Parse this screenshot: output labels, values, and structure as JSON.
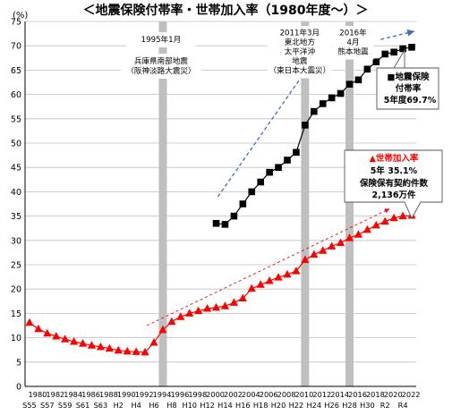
{
  "chart_data": {
    "type": "line",
    "title": "＜地震保険付帯率・世帯加入率（1980年度～）＞",
    "ylabel": "(%)",
    "ylim": [
      0,
      75
    ],
    "y_ticks": [
      0,
      5,
      10,
      15,
      20,
      25,
      30,
      35,
      40,
      45,
      50,
      55,
      60,
      65,
      70,
      75
    ],
    "grid": true,
    "x_ticks": [
      {
        "year": 1980,
        "label": "1980",
        "era": "S55"
      },
      {
        "year": 1982,
        "label": "1982",
        "era": "S57"
      },
      {
        "year": 1984,
        "label": "1984",
        "era": "S59"
      },
      {
        "year": 1986,
        "label": "1986",
        "era": "S61"
      },
      {
        "year": 1988,
        "label": "1988",
        "era": "S63"
      },
      {
        "year": 1990,
        "label": "1990",
        "era": "H2"
      },
      {
        "year": 1992,
        "label": "1992",
        "era": "H4"
      },
      {
        "year": 1994,
        "label": "1994",
        "era": "H6"
      },
      {
        "year": 1996,
        "label": "1996",
        "era": "H8"
      },
      {
        "year": 1998,
        "label": "1998",
        "era": "H10"
      },
      {
        "year": 2000,
        "label": "2000",
        "era": "H12"
      },
      {
        "year": 2002,
        "label": "2002",
        "era": "H14"
      },
      {
        "year": 2004,
        "label": "2004",
        "era": "H16"
      },
      {
        "year": 2006,
        "label": "2006",
        "era": "H18"
      },
      {
        "year": 2008,
        "label": "2008",
        "era": "H20"
      },
      {
        "year": 2010,
        "label": "2010",
        "era": "H22"
      },
      {
        "year": 2012,
        "label": "2012",
        "era": "H24"
      },
      {
        "year": 2014,
        "label": "2014",
        "era": "H26"
      },
      {
        "year": 2016,
        "label": "2016",
        "era": "H28"
      },
      {
        "year": 2018,
        "label": "2018",
        "era": "H30"
      },
      {
        "year": 2020,
        "label": "2020",
        "era": "R2"
      },
      {
        "year": 2022,
        "label": "2022",
        "era": "R4"
      }
    ],
    "series": [
      {
        "name": "地震保険付帯率",
        "color": "#000000",
        "marker": "square",
        "x": [
          2001,
          2002,
          2003,
          2004,
          2005,
          2006,
          2007,
          2008,
          2009,
          2010,
          2011,
          2012,
          2013,
          2014,
          2015,
          2016,
          2017,
          2018,
          2019,
          2020,
          2021,
          2022,
          2023
        ],
        "values": [
          33.5,
          33.3,
          35,
          37.5,
          40,
          42,
          44,
          45,
          46.5,
          48.1,
          53.7,
          56.5,
          58.1,
          59.3,
          60.2,
          62.1,
          63,
          65.2,
          66.7,
          68.3,
          68.7,
          69.4,
          69.7
        ]
      },
      {
        "name": "世帯加入率",
        "color": "#ff0000",
        "marker": "triangle",
        "x": [
          1980,
          1981,
          1982,
          1983,
          1984,
          1985,
          1986,
          1987,
          1988,
          1989,
          1990,
          1991,
          1992,
          1993,
          1994,
          1995,
          1996,
          1997,
          1998,
          1999,
          2000,
          2001,
          2002,
          2003,
          2004,
          2005,
          2006,
          2007,
          2008,
          2009,
          2010,
          2011,
          2012,
          2013,
          2014,
          2015,
          2016,
          2017,
          2018,
          2019,
          2020,
          2021,
          2022,
          2023
        ],
        "values": [
          13.1,
          11.8,
          10.9,
          10.3,
          9.7,
          9.2,
          8.8,
          8.4,
          8.1,
          7.8,
          7.4,
          7.2,
          7.1,
          7.0,
          9.0,
          11.6,
          13.3,
          14.3,
          15.0,
          15.5,
          16.0,
          16.2,
          16.5,
          17.2,
          18.1,
          20.1,
          20.9,
          21.7,
          22.4,
          23.0,
          23.7,
          26.0,
          27.1,
          27.9,
          28.8,
          29.5,
          30.5,
          31.2,
          32.2,
          33.1,
          33.9,
          34.6,
          35.0,
          35.1
        ]
      }
    ],
    "events": [
      {
        "year": 1995,
        "label_lines": [
          "1995年1月",
          "兵庫県南部地震",
          "（阪神淡路大震災）"
        ]
      },
      {
        "year": 2011,
        "label_lines": [
          "2011年3月",
          "東北地方",
          "太平洋沖",
          "地震",
          "（東日本大震災）"
        ]
      },
      {
        "year": 2016,
        "label_lines": [
          "2016年",
          "4月",
          "熊本地震"
        ]
      }
    ],
    "annotations": {
      "futai": [
        "■地震保険",
        "付帯率",
        "5年度69.7%"
      ],
      "kanyu": [
        "▲世帯加入率",
        "5年 35.1%",
        "保険保有契約件数",
        "2,136万件"
      ]
    }
  }
}
